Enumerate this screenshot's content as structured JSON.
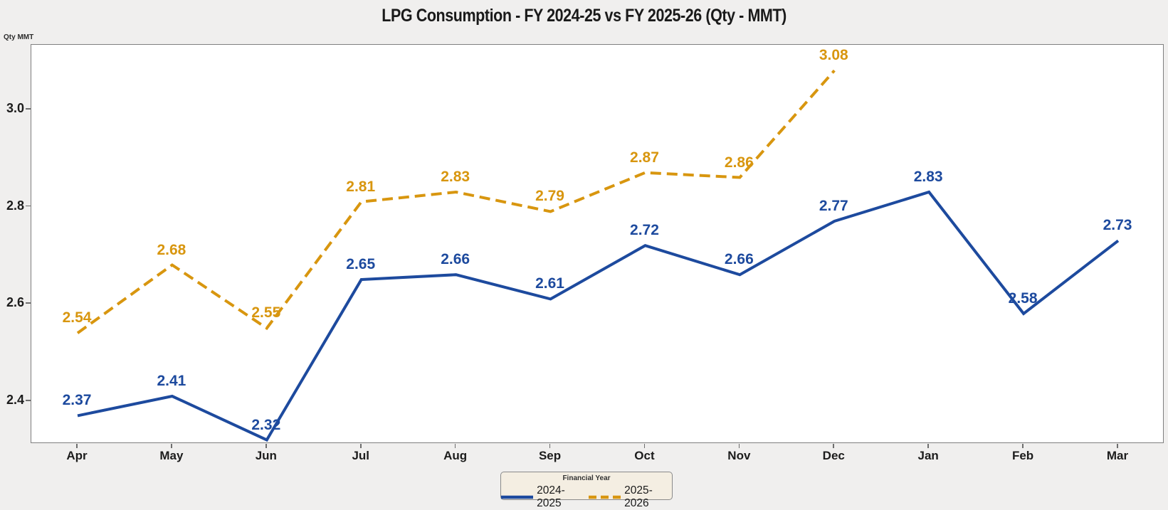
{
  "title": "LPG Consumption - FY 2024-25 vs FY 2025-26 (Qty - MMT)",
  "y_axis_label": "Qty MMT",
  "chart_data": {
    "type": "line",
    "categories": [
      "Apr",
      "May",
      "Jun",
      "Jul",
      "Aug",
      "Sep",
      "Oct",
      "Nov",
      "Dec",
      "Jan",
      "Feb",
      "Mar"
    ],
    "series": [
      {
        "name": "2024-2025",
        "color": "#1d4a9e",
        "line_style": "solid",
        "values": [
          2.37,
          2.41,
          2.32,
          2.65,
          2.66,
          2.61,
          2.72,
          2.66,
          2.77,
          2.83,
          2.58,
          2.73
        ]
      },
      {
        "name": "2025-2026",
        "color": "#d8960f",
        "line_style": "dashed",
        "values": [
          2.54,
          2.68,
          2.55,
          2.81,
          2.83,
          2.79,
          2.87,
          2.86,
          3.08,
          null,
          null,
          null
        ]
      }
    ],
    "yticks": [
      2.4,
      2.6,
      2.8,
      3.0
    ],
    "ylim": [
      2.312,
      3.133
    ],
    "grid": false,
    "data_labels": true,
    "legend": {
      "title": "Financial Year",
      "position": "bottom-center"
    }
  }
}
